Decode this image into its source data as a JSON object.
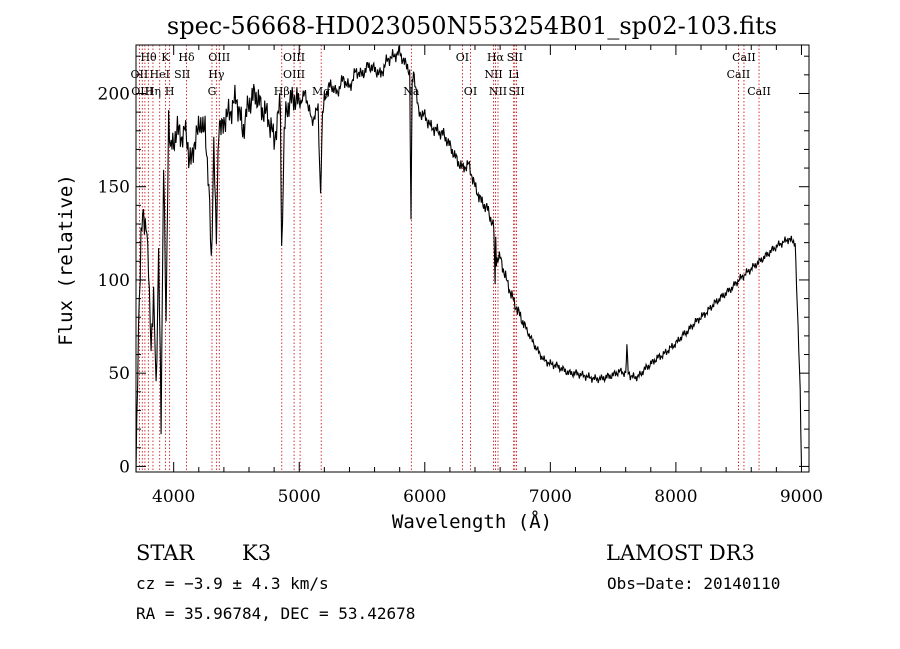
{
  "chart_data": {
    "type": "line",
    "title": "spec-56668-HD023050N553254B01_sp02-103.fits",
    "xlabel": "Wavelength (Å)",
    "ylabel": "Flux (relative)",
    "xlim": [
      3700,
      9060
    ],
    "ylim": [
      -3,
      226
    ],
    "xticks": [
      4000,
      5000,
      6000,
      7000,
      8000,
      9000
    ],
    "yticks": [
      0,
      50,
      100,
      150,
      200
    ],
    "grid": false,
    "series": [
      {
        "name": "flux",
        "x": [
          3700,
          3720,
          3740,
          3760,
          3780,
          3800,
          3820,
          3840,
          3860,
          3880,
          3900,
          3920,
          3940,
          3960,
          3980,
          4000,
          4030,
          4060,
          4090,
          4120,
          4150,
          4180,
          4210,
          4250,
          4280,
          4300,
          4320,
          4340,
          4360,
          4400,
          4450,
          4500,
          4550,
          4600,
          4650,
          4700,
          4750,
          4800,
          4850,
          4860,
          4880,
          4900,
          4950,
          5000,
          5050,
          5100,
          5150,
          5170,
          5185,
          5200,
          5250,
          5300,
          5350,
          5400,
          5450,
          5500,
          5550,
          5600,
          5650,
          5700,
          5750,
          5800,
          5850,
          5880,
          5890,
          5900,
          5910,
          5950,
          6000,
          6050,
          6100,
          6150,
          6200,
          6250,
          6300,
          6350,
          6400,
          6450,
          6500,
          6550,
          6560,
          6565,
          6570,
          6600,
          6650,
          6700,
          6750,
          6800,
          6850,
          6900,
          6950,
          7000,
          7050,
          7100,
          7150,
          7200,
          7250,
          7300,
          7350,
          7400,
          7450,
          7500,
          7550,
          7600,
          7610,
          7620,
          7630,
          7650,
          7700,
          7750,
          7800,
          7850,
          7900,
          7950,
          8000,
          8050,
          8100,
          8150,
          8200,
          8250,
          8300,
          8350,
          8400,
          8450,
          8500,
          8550,
          8600,
          8650,
          8700,
          8750,
          8800,
          8850,
          8900,
          8950,
          8990,
          9000
        ],
        "values": [
          0,
          70,
          125,
          135,
          128,
          110,
          60,
          95,
          40,
          115,
          25,
          160,
          80,
          185,
          170,
          175,
          182,
          172,
          188,
          160,
          170,
          178,
          180,
          185,
          150,
          110,
          170,
          125,
          180,
          186,
          190,
          198,
          180,
          195,
          200,
          192,
          188,
          175,
          195,
          110,
          180,
          192,
          198,
          195,
          200,
          185,
          192,
          145,
          190,
          198,
          205,
          200,
          208,
          203,
          212,
          210,
          215,
          213,
          210,
          218,
          220,
          222,
          215,
          212,
          135,
          205,
          210,
          190,
          188,
          182,
          180,
          178,
          172,
          165,
          160,
          162,
          150,
          142,
          138,
          128,
          95,
          125,
          110,
          112,
          100,
          90,
          82,
          75,
          68,
          62,
          57,
          55,
          54,
          52,
          50,
          50,
          49,
          48,
          47,
          47,
          48,
          49,
          51,
          50,
          65,
          52,
          49,
          48,
          48,
          52,
          55,
          58,
          60,
          63,
          66,
          70,
          73,
          77,
          80,
          83,
          87,
          90,
          93,
          96,
          100,
          103,
          106,
          109,
          112,
          115,
          118,
          120,
          122,
          120,
          40,
          0
        ]
      }
    ],
    "line_labels": [
      {
        "text": "Hθ",
        "x": 3800,
        "row": 1
      },
      {
        "text": "K",
        "x": 3934,
        "row": 1
      },
      {
        "text": "Hδ",
        "x": 4102,
        "row": 1
      },
      {
        "text": "OIII",
        "x": 4363,
        "row": 1
      },
      {
        "text": "OIII",
        "x": 4959,
        "row": 1
      },
      {
        "text": "OI",
        "x": 6300,
        "row": 1
      },
      {
        "text": "Hα",
        "x": 6563,
        "row": 1
      },
      {
        "text": "SII",
        "x": 6717,
        "row": 1
      },
      {
        "text": "CaII",
        "x": 8542,
        "row": 1
      },
      {
        "text": "OII",
        "x": 3727,
        "row": 2
      },
      {
        "text": "HeI",
        "x": 3889,
        "row": 2
      },
      {
        "text": "SII",
        "x": 4068,
        "row": 2
      },
      {
        "text": "Hγ",
        "x": 4340,
        "row": 2
      },
      {
        "text": "OIII",
        "x": 4959,
        "row": 2
      },
      {
        "text": "NII",
        "x": 6548,
        "row": 2
      },
      {
        "text": "Li",
        "x": 6708,
        "row": 2
      },
      {
        "text": "CaII",
        "x": 8498,
        "row": 2
      },
      {
        "text": "OIII",
        "x": 3750,
        "row": 3
      },
      {
        "text": "Hη",
        "x": 3835,
        "row": 3
      },
      {
        "text": "H",
        "x": 3968,
        "row": 3
      },
      {
        "text": "G",
        "x": 4305,
        "row": 3
      },
      {
        "text": "Hβ",
        "x": 4861,
        "row": 3
      },
      {
        "text": "Mg",
        "x": 5175,
        "row": 3
      },
      {
        "text": "Na",
        "x": 5893,
        "row": 3
      },
      {
        "text": "OI",
        "x": 6364,
        "row": 3
      },
      {
        "text": "NII",
        "x": 6583,
        "row": 3
      },
      {
        "text": "SII",
        "x": 6731,
        "row": 3
      },
      {
        "text": "CaII",
        "x": 8662,
        "row": 3
      }
    ],
    "line_positions": [
      3727,
      3750,
      3771,
      3798,
      3835,
      3889,
      3934,
      3968,
      4102,
      4305,
      4340,
      4363,
      4861,
      4959,
      5007,
      5175,
      5893,
      6300,
      6364,
      6548,
      6563,
      6583,
      6708,
      6717,
      6731,
      8498,
      8542,
      8662
    ],
    "line_color": "#cc0000"
  },
  "info": {
    "object_class": "STAR",
    "subclass": "K3",
    "survey": "LAMOST DR3",
    "cz": "cz = −3.9 ± 4.3 km/s",
    "obs_date": "Obs−Date: 20140110",
    "coords": "RA =  35.96784, DEC =  53.42678"
  }
}
